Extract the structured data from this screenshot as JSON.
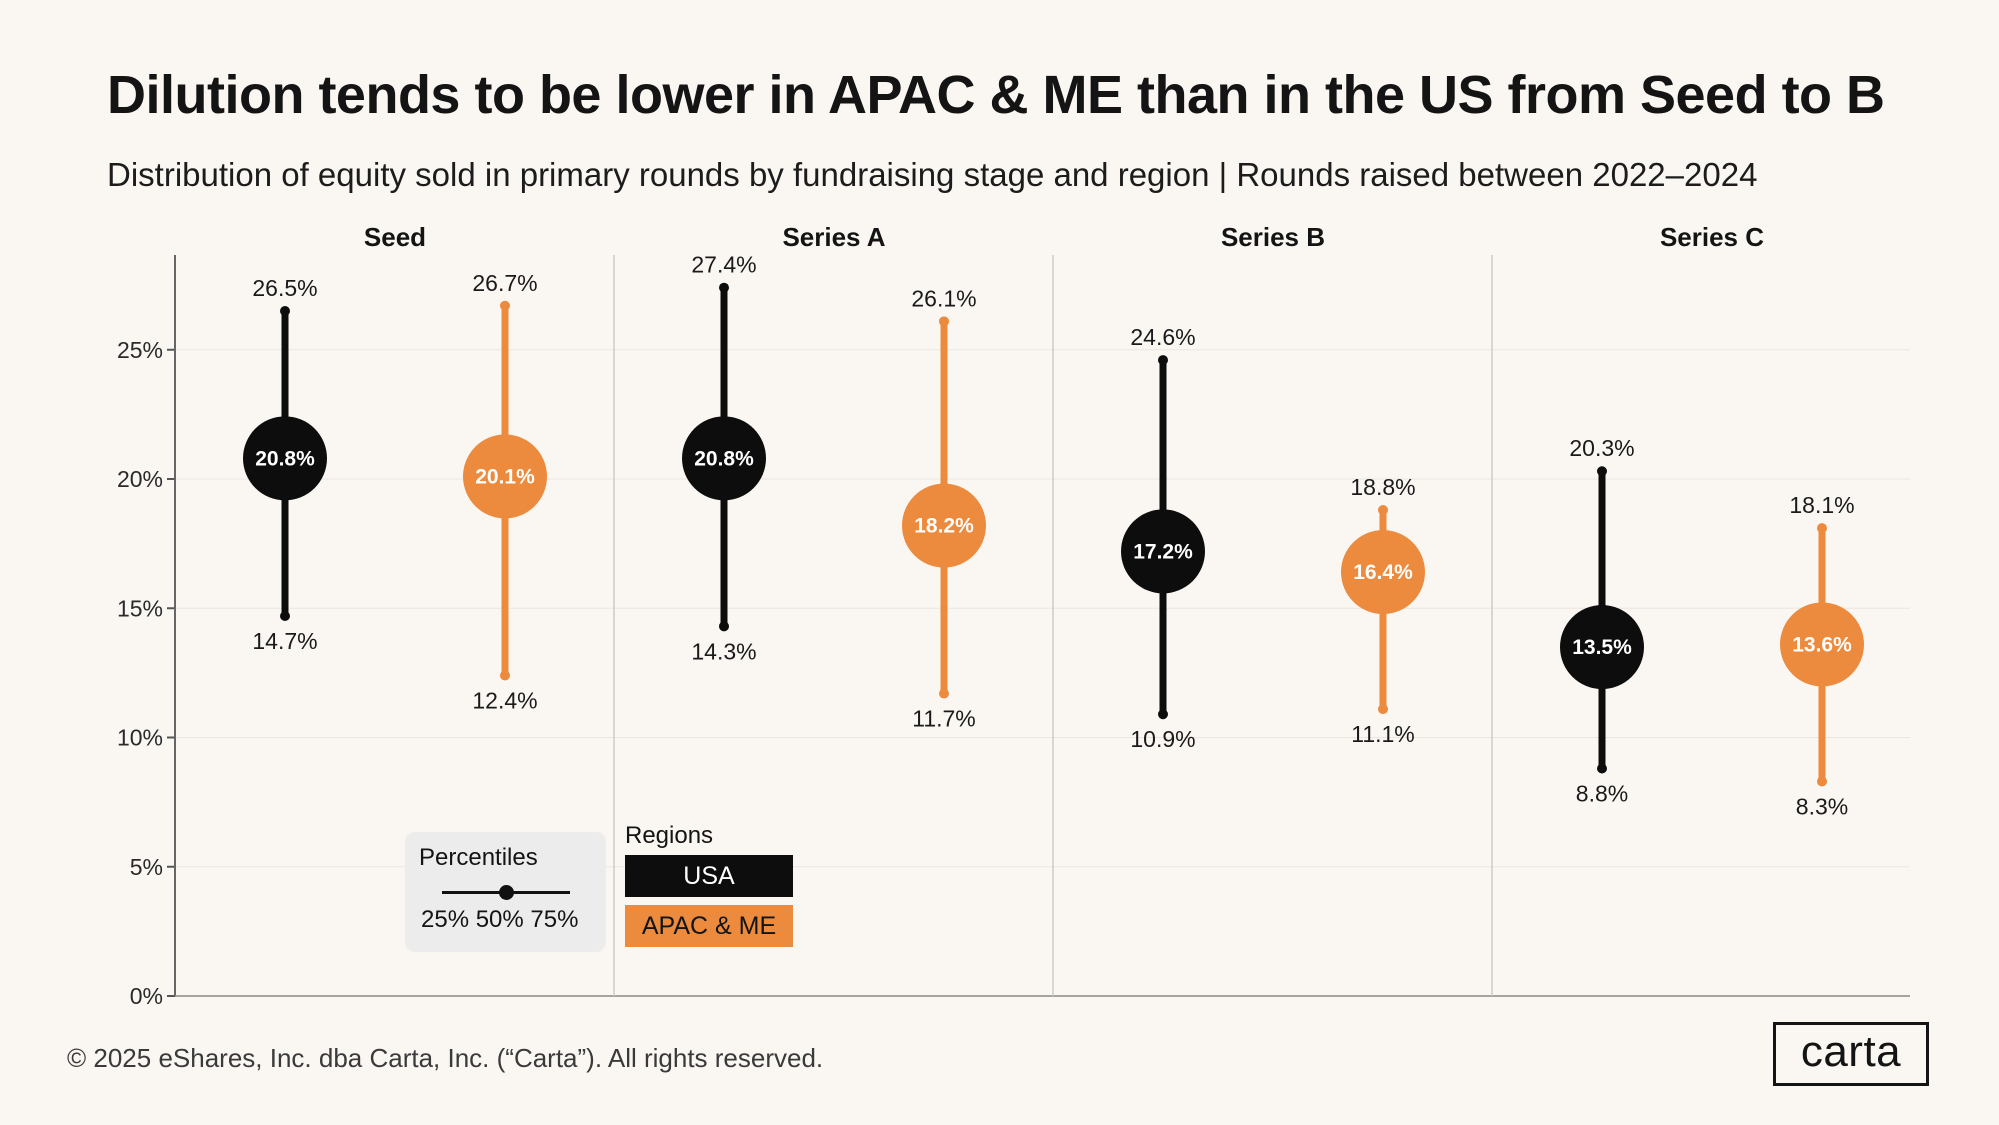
{
  "title": "Dilution tends to be lower in APAC & ME than in the US from Seed to B",
  "subtitle": "Distribution of equity sold in primary rounds  by fundraising stage and region | Rounds raised between 2022–2024",
  "footer": "© 2025 eShares, Inc. dba Carta, Inc. (“Carta”). All rights reserved.",
  "logo": "carta",
  "legend": {
    "percentiles_title": "Percentiles",
    "percentiles_ticks": "25% 50% 75%",
    "regions_title": "Regions",
    "regions": [
      "USA",
      "APAC & ME"
    ]
  },
  "colors": {
    "usa": "#0d0d0d",
    "apac": "#ec8a3e",
    "background": "#faf7f3"
  },
  "chart_data": {
    "type": "range-dot",
    "title": "Dilution tends to be lower in APAC & ME than in the US from Seed to B",
    "categories": [
      "Seed",
      "Series A",
      "Series B",
      "Series C"
    ],
    "y_ticks": [
      "0%",
      "5%",
      "10%",
      "15%",
      "20%",
      "25%"
    ],
    "ylim": [
      0,
      29
    ],
    "series": [
      {
        "name": "USA",
        "p25": [
          14.7,
          14.3,
          10.9,
          8.8
        ],
        "p50": [
          20.8,
          20.8,
          17.2,
          13.5
        ],
        "p75": [
          26.5,
          27.4,
          24.6,
          20.3
        ]
      },
      {
        "name": "APAC & ME",
        "p25": [
          12.4,
          11.7,
          11.1,
          8.3
        ],
        "p50": [
          20.1,
          18.2,
          16.4,
          13.6
        ],
        "p75": [
          26.7,
          26.1,
          18.8,
          18.1
        ]
      }
    ]
  }
}
